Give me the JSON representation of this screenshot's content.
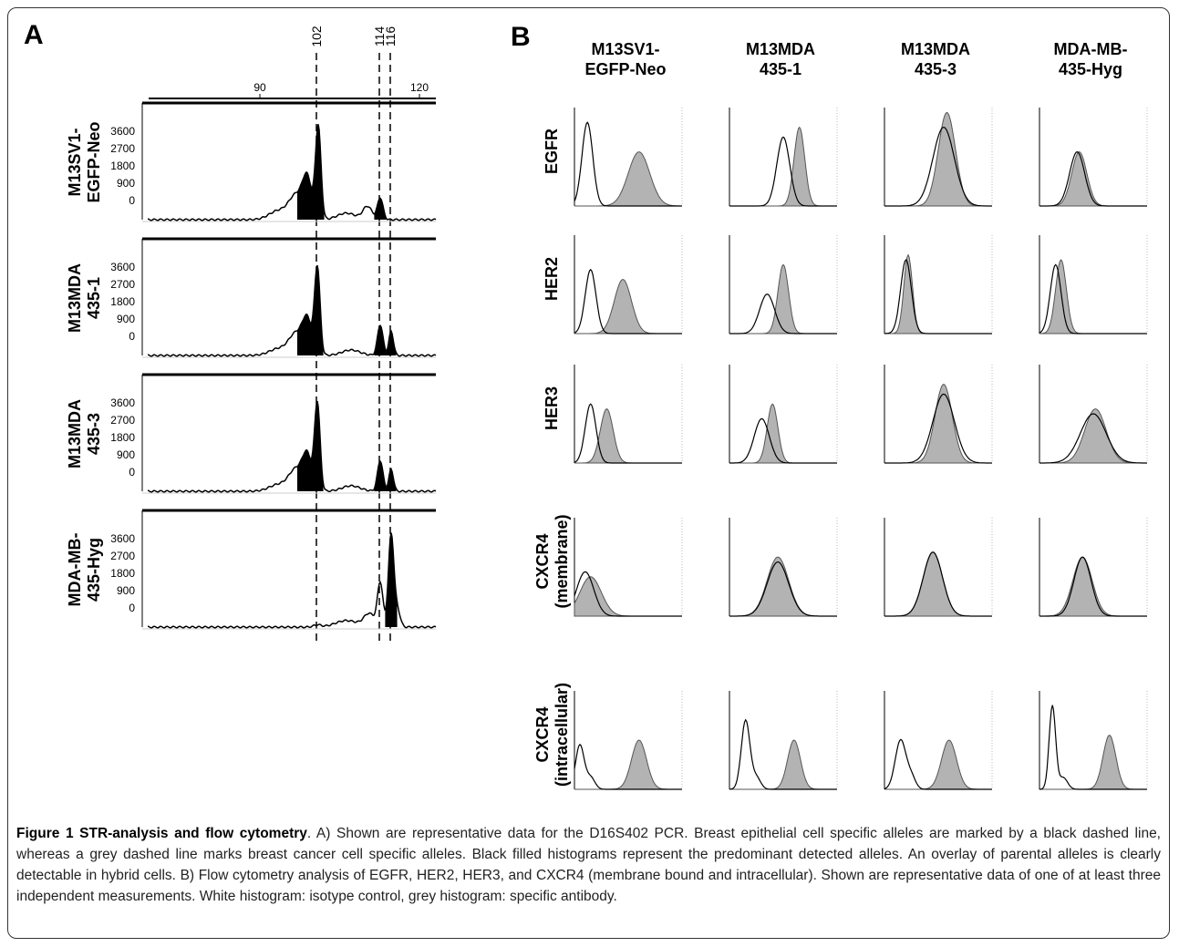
{
  "panel_a": {
    "label": "A",
    "scale_labels": [
      "90",
      "120"
    ],
    "allele_labels": [
      "102",
      "114",
      "116"
    ],
    "y_ticks": [
      "3600",
      "2700",
      "1800",
      "900",
      "0"
    ],
    "samples": [
      {
        "lines": [
          "M13SV1-",
          "EGFP-Neo"
        ]
      },
      {
        "lines": [
          "M13MDA",
          "435-1"
        ]
      },
      {
        "lines": [
          "M13MDA",
          "435-3"
        ]
      },
      {
        "lines": [
          "MDA-MB-",
          "435-Hyg"
        ]
      }
    ]
  },
  "panel_b": {
    "label": "B",
    "columns": [
      {
        "lines": [
          "M13SV1-",
          "EGFP-Neo"
        ]
      },
      {
        "lines": [
          "M13MDA",
          "435-1"
        ]
      },
      {
        "lines": [
          "M13MDA",
          "435-3"
        ]
      },
      {
        "lines": [
          "MDA-MB-",
          "435-Hyg"
        ]
      }
    ],
    "rows": [
      {
        "lines": [
          "EGFR"
        ]
      },
      {
        "lines": [
          "HER2"
        ]
      },
      {
        "lines": [
          "HER3"
        ]
      },
      {
        "lines": [
          "CXCR4",
          "(membrane)"
        ]
      },
      {
        "lines": [
          "CXCR4",
          "(intracellular)"
        ]
      }
    ]
  },
  "caption": {
    "title": "Figure 1 STR-analysis and flow cytometry",
    "text": ". A) Shown are representative data for the D16S402 PCR. Breast epithelial cell specific alleles are marked by a black dashed line, whereas a grey dashed line marks breast cancer cell specific alleles. Black filled histograms represent the predominant detected alleles. An overlay of parental alleles is clearly detectable in hybrid cells. B) Flow cytometry analysis of EGFR, HER2, HER3, and CXCR4 (membrane bound and intracellular). Shown are representative data of one of at least three independent measurements. White histogram: isotype control, grey histogram: specific antibody."
  }
}
